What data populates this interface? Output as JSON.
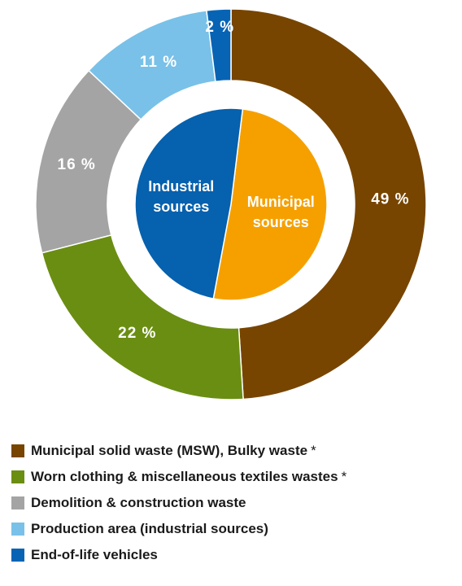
{
  "chart_data": {
    "type": "pie",
    "variant": "nested-donut",
    "title": "",
    "outer_ring": {
      "slices": [
        {
          "label": "Municipal solid waste (MSW), Bulky waste *",
          "value": 49,
          "display": "49 %",
          "color": "#774500"
        },
        {
          "label": "Worn clothing & miscellaneous textiles wastes *",
          "value": 22,
          "display": "22 %",
          "color": "#6a8e12"
        },
        {
          "label": "Demolition & construction waste",
          "value": 16,
          "display": "16 %",
          "color": "#a4a4a4"
        },
        {
          "label": "Production area (industrial sources)",
          "value": 11,
          "display": "11 %",
          "color": "#79c1e8"
        },
        {
          "label": "End-of-life vehicles",
          "value": 2,
          "display": "2 %",
          "color": "#0764b4"
        }
      ]
    },
    "inner_pie": {
      "slices": [
        {
          "label": "Municipal sources",
          "lines": [
            "Municipal",
            "sources"
          ],
          "value": 51,
          "color": "#f6a000"
        },
        {
          "label": "Industrial sources",
          "lines": [
            "Industrial",
            "sources"
          ],
          "value": 49,
          "color": "#0661ae"
        }
      ]
    },
    "legend": {
      "placement": "bottom",
      "items": [
        {
          "label": "Municipal solid waste (MSW), Bulky waste",
          "mark": "*",
          "color": "#774500"
        },
        {
          "label": "Worn clothing & miscellaneous textiles wastes",
          "mark": "*",
          "color": "#6a8e12"
        },
        {
          "label": "Demolition & construction waste",
          "mark": "",
          "color": "#a4a4a4"
        },
        {
          "label": "Production area (industrial sources)",
          "mark": "",
          "color": "#79c1e8"
        },
        {
          "label": "End-of-life vehicles",
          "mark": "",
          "color": "#0764b4"
        }
      ]
    }
  }
}
